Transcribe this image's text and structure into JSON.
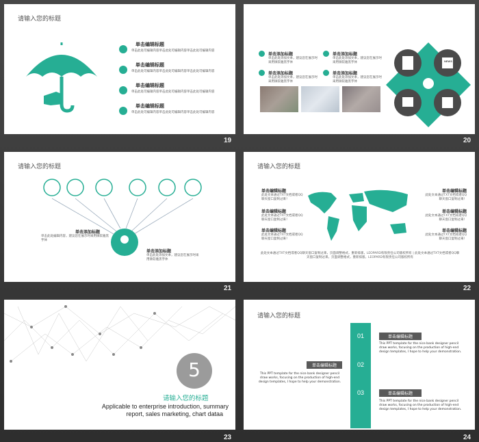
{
  "slides": [
    {
      "number": "19",
      "title": "请输入您的标题",
      "items": [
        {
          "heading": "单击编辑标题",
          "text": "单击此处可编辑内容单击此处可编辑内容单击此处可编辑内容"
        },
        {
          "heading": "单击编辑标题",
          "text": "单击此处可编辑内容单击此处可编辑内容单击此处可编辑内容"
        },
        {
          "heading": "单击编辑标题",
          "text": "单击此处可编辑内容单击此处可编辑内容单击此处可编辑内容"
        },
        {
          "heading": "单击编辑标题",
          "text": "单击此处可编辑内容单击此处可编辑内容单击此处可编辑内容"
        }
      ]
    },
    {
      "number": "20",
      "items": [
        {
          "heading": "单击添加标题",
          "text": "单击此处添加文本，建议您在展示时采用微软雅黑字体"
        },
        {
          "heading": "单击添加标题",
          "text": "单击此处添加文本，建议您在展示时采用微软雅黑字体"
        },
        {
          "heading": "单击添加标题",
          "text": "单击此处添加文本，建议您在展示时采用微软雅黑字体"
        },
        {
          "heading": "单击添加标题",
          "text": "单击此处添加文本，建议您在展示时采用微软雅黑字体"
        }
      ],
      "news_label": "NEWS"
    },
    {
      "number": "21",
      "title": "请输入您的标题",
      "left": {
        "heading": "单击添加标题",
        "text": "单击此处编辑内容，建议您在展示时采用微软雅黑字体"
      },
      "right": {
        "heading": "单击添加标题",
        "text": "单击此处添加文本，建议您在展示时采用微软雅黑字体"
      },
      "icons": [
        "bank-icon",
        "laptop-icon",
        "bulb-icon",
        "dollar-icon",
        "thumbs-up-icon",
        "search-plus-icon"
      ]
    },
    {
      "number": "22",
      "title": "请输入您的标题",
      "left_items": [
        {
          "heading": "单击编辑标题",
          "text": "此处文本通过TXT文档或者QQ聊天窗口复制过来！"
        },
        {
          "heading": "单击编辑标题",
          "text": "此处文本通过TXT文档或者QQ聊天窗口复制过来！"
        },
        {
          "heading": "单击编辑标题",
          "text": "此处文本通过TXT文档或者QQ聊天窗口复制过来！"
        }
      ],
      "right_items": [
        {
          "heading": "单击编辑标题",
          "text": "此处文本通过TXT文档或者QQ聊天窗口复制过来！"
        },
        {
          "heading": "单击编辑标题",
          "text": "此处文本通过TXT文档或者QQ聊天窗口复制过来！"
        },
        {
          "heading": "单击编辑标题",
          "text": "此处文本通过TXT文档或者QQ聊天窗口复制过来！"
        }
      ],
      "footer": "此处文本通过TXT文档或者QQ聊天窗口复制过来，页面调整格式，重新排版，LEOPARD有限责任公司版权所有 | 此处文本通过TXT文档或者QQ聊天窗口复制过来，页面调整格式，重新排版，LEOPARD有限责任公司版权所有"
    },
    {
      "number": "23",
      "section_num": "5",
      "title": "请输入您的标题",
      "subtitle_line1": "Applicable to enterprise introduction, summary",
      "subtitle_line2": "report,  sales marketing, chart dataa"
    },
    {
      "number": "24",
      "title": "请输入您的标题",
      "steps": [
        "01",
        "02",
        "03"
      ],
      "labels": [
        {
          "heading": "单击编辑标题",
          "text": "This PPT template for the nice bank designer pencil draw works, focusing on the production of high-end design templates, I hope to help your demonstration."
        },
        {
          "heading": "单击编辑标题",
          "text": "This PPT template for the nice bank designer pencil draw works, focusing on the production of high-end design templates, I hope to help your demonstration."
        },
        {
          "heading": "单击编辑标题",
          "text": "This PPT template for the nice bank designer pencil draw works, focusing on the production of high-end design templates, I hope to help your demonstration."
        }
      ]
    }
  ],
  "colors": {
    "accent": "#26ae94",
    "dark": "#4a4a4a",
    "gray": "#8e8e8e"
  }
}
